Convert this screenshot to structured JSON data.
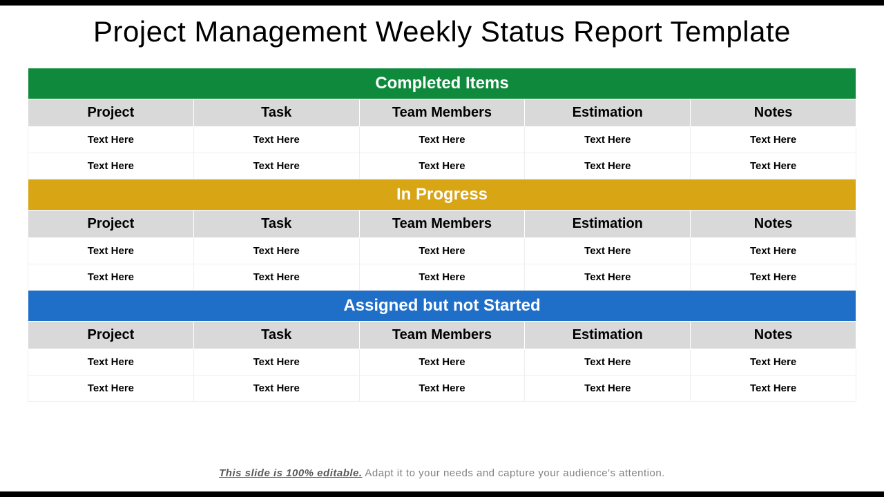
{
  "title": "Project Management Weekly Status Report Template",
  "columns": [
    "Project",
    "Task",
    "Team Members",
    "Estimation",
    "Notes"
  ],
  "placeholder": "Text Here",
  "sections": [
    {
      "label": "Completed Items",
      "bg": "#0f8a3c",
      "rows": 2
    },
    {
      "label": "In Progress",
      "bg": "#d8a514",
      "rows": 2
    },
    {
      "label": "Assigned but not Started",
      "bg": "#1f6fc9",
      "rows": 2
    }
  ],
  "footer": {
    "lead": "This slide is 100% editable.",
    "rest": " Adapt it to your needs and capture your audience's attention."
  },
  "style": {
    "header_row_bg": "#d9d9d9",
    "title_fontsize": 42,
    "section_fontsize": 24,
    "colhdr_fontsize": 20,
    "cell_fontsize": 15
  }
}
